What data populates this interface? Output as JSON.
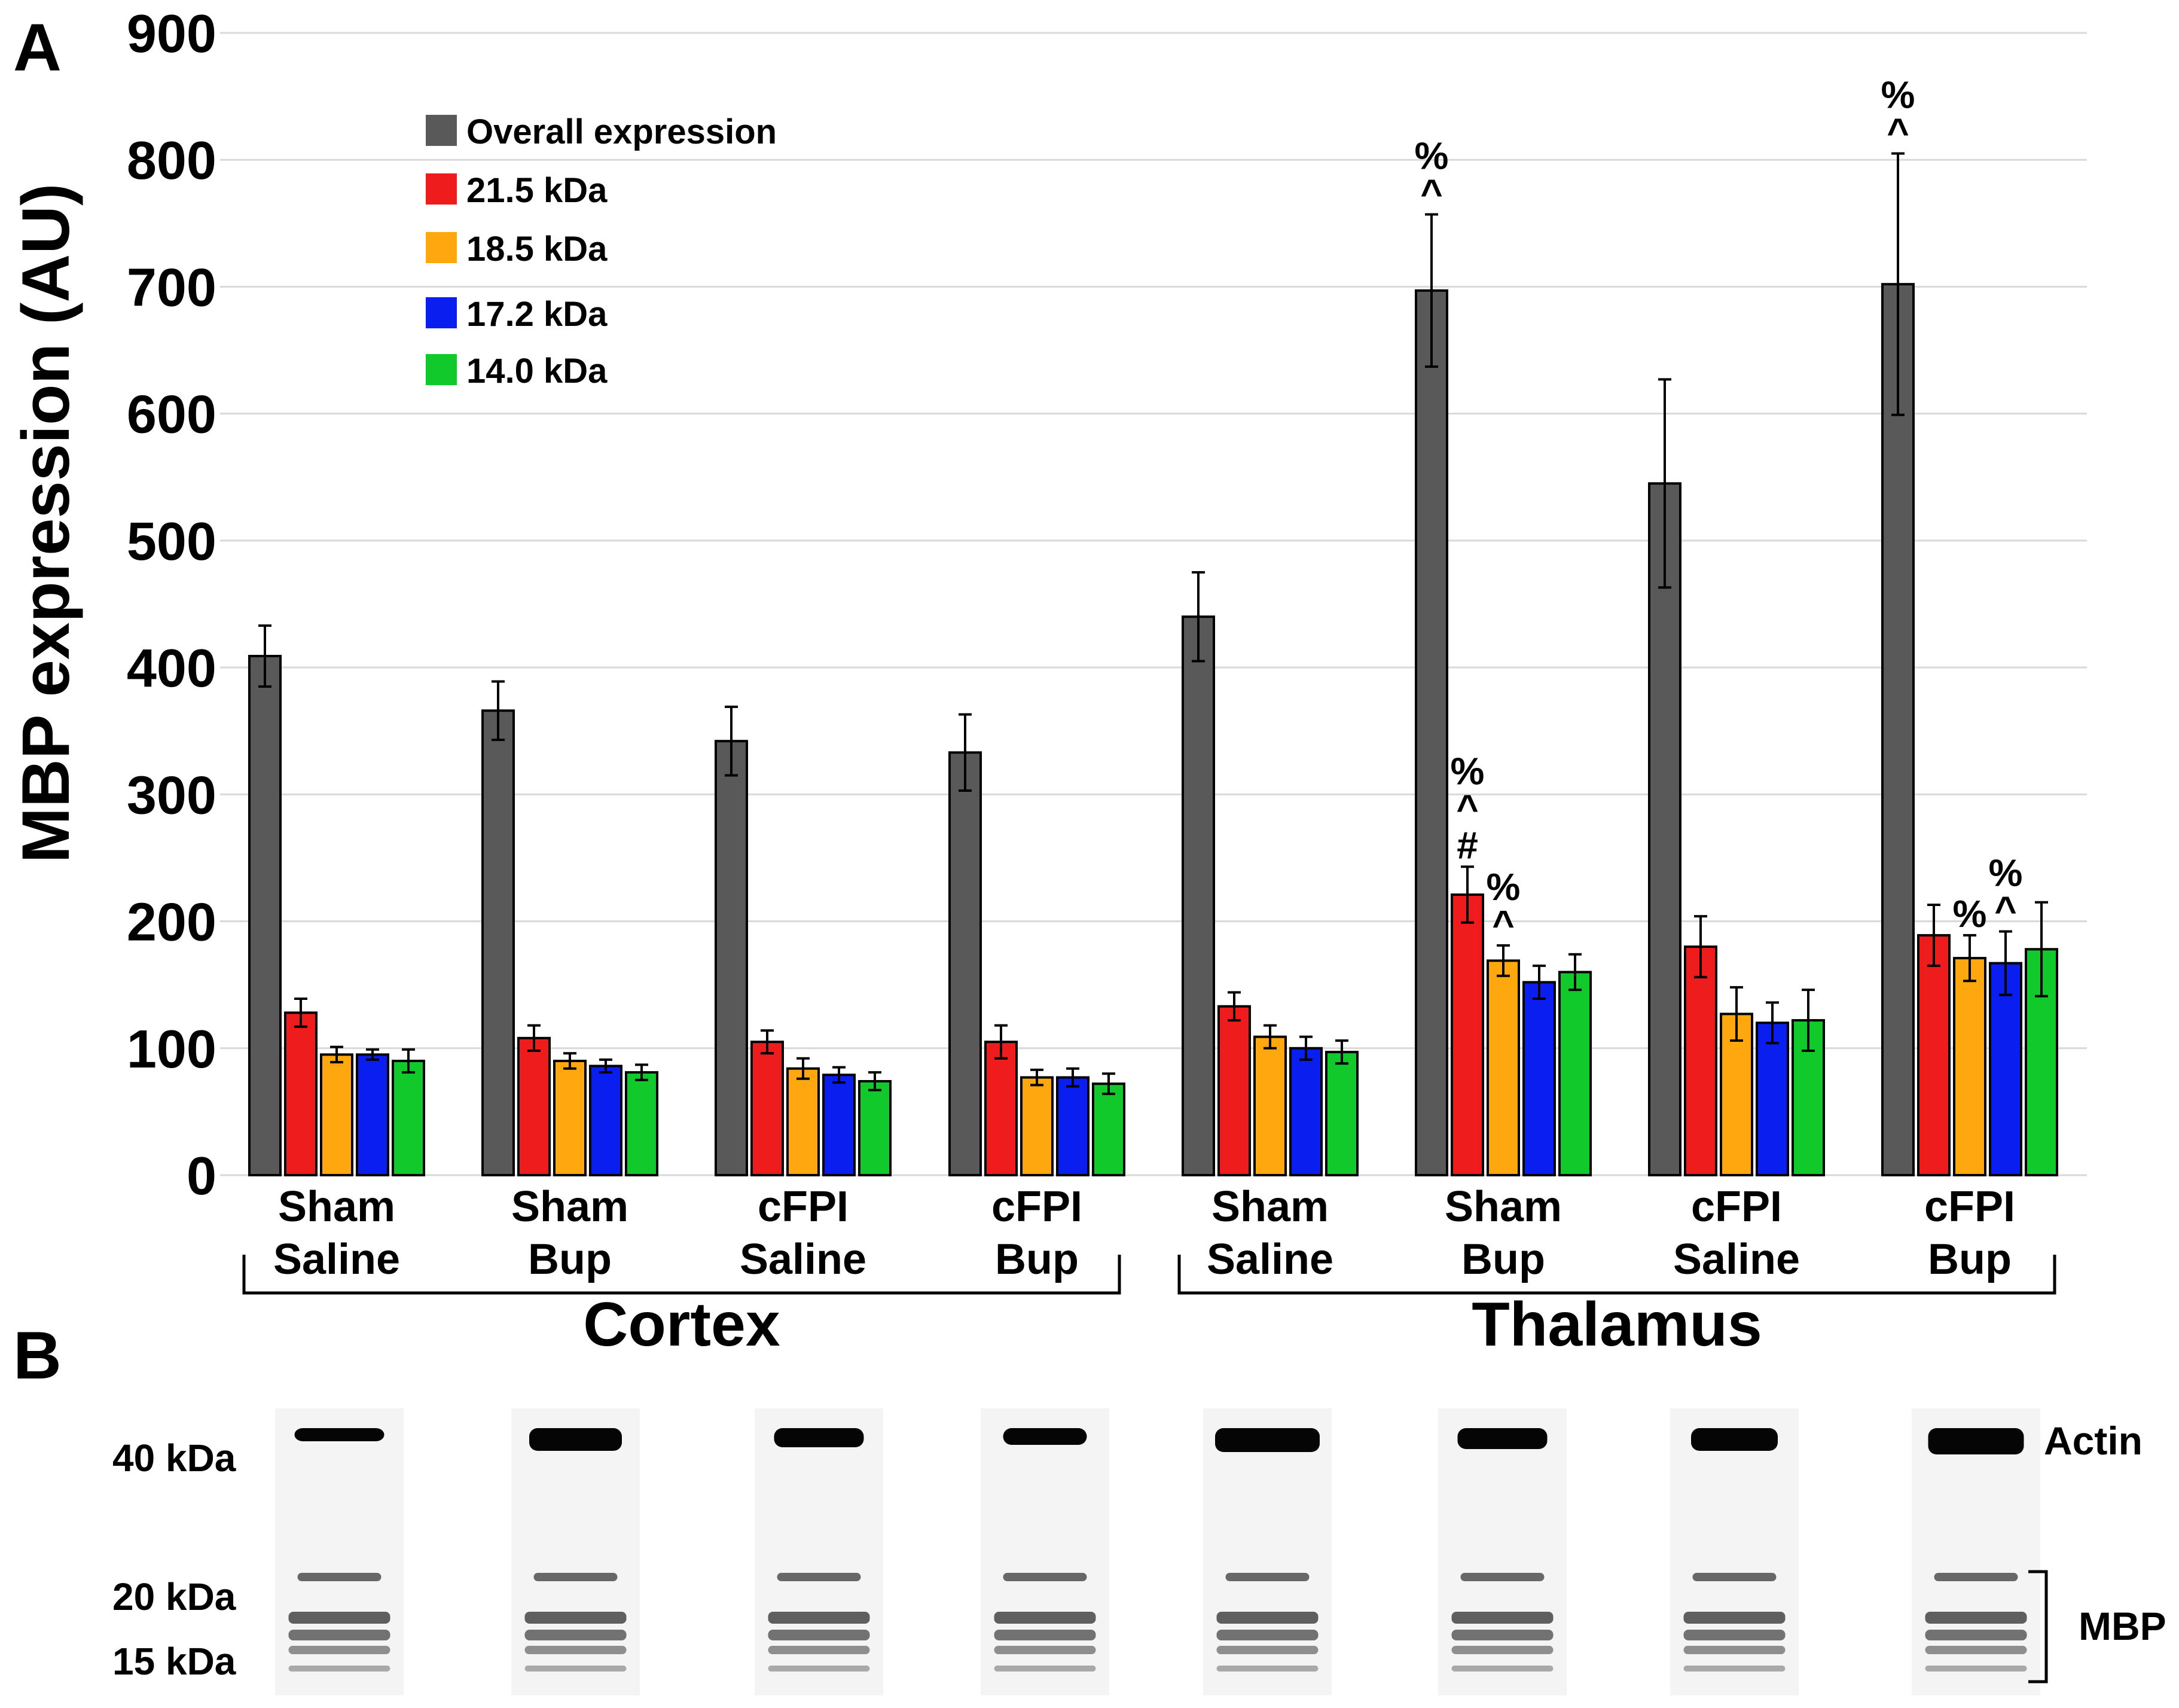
{
  "panel_labels": {
    "a": "A",
    "b": "B"
  },
  "chart_data": {
    "type": "bar",
    "title": "",
    "xlabel": "",
    "ylabel": "MBP expression (AU)",
    "ylim": [
      0,
      900
    ],
    "yticks": [
      0,
      100,
      200,
      300,
      400,
      500,
      600,
      700,
      800,
      900
    ],
    "grid": true,
    "legend_position": "top-left",
    "categories": [
      [
        "Sham",
        "Saline"
      ],
      [
        "Sham",
        "Bup"
      ],
      [
        "cFPI",
        "Saline"
      ],
      [
        "cFPI",
        "Bup"
      ],
      [
        "Sham",
        "Saline"
      ],
      [
        "Sham",
        "Bup"
      ],
      [
        "cFPI",
        "Saline"
      ],
      [
        "cFPI",
        "Bup"
      ]
    ],
    "regions": [
      {
        "name": "Cortex",
        "categories": [
          0,
          1,
          2,
          3
        ]
      },
      {
        "name": "Thalamus",
        "categories": [
          4,
          5,
          6,
          7
        ]
      }
    ],
    "series": [
      {
        "name": "Overall expression",
        "color": "#595959",
        "values": [
          409,
          366,
          342,
          333,
          440,
          697,
          545,
          702
        ],
        "errors": [
          24,
          23,
          27,
          30,
          35,
          60,
          82,
          103
        ]
      },
      {
        "name": "21.5 kDa",
        "color": "#ee1c1c",
        "values": [
          128,
          108,
          105,
          105,
          133,
          221,
          180,
          189
        ],
        "errors": [
          11,
          10,
          9,
          13,
          11,
          22,
          24,
          24
        ]
      },
      {
        "name": "18.5 kDa",
        "color": "#ffa70f",
        "values": [
          95,
          90,
          84,
          77,
          109,
          169,
          127,
          171
        ],
        "errors": [
          6,
          6,
          8,
          6,
          9,
          12,
          21,
          18
        ]
      },
      {
        "name": "17.2 kDa",
        "color": "#0a1ef0",
        "values": [
          95,
          86,
          79,
          77,
          100,
          152,
          120,
          167
        ],
        "errors": [
          4,
          5,
          6,
          7,
          9,
          13,
          16,
          25
        ]
      },
      {
        "name": "14.0 kDa",
        "color": "#12c92c",
        "values": [
          90,
          81,
          74,
          72,
          97,
          160,
          122,
          178
        ],
        "errors": [
          9,
          6,
          7,
          8,
          9,
          14,
          24,
          37
        ]
      }
    ],
    "annotations": [
      {
        "category": 5,
        "series": 0,
        "text": [
          "%",
          "^"
        ]
      },
      {
        "category": 7,
        "series": 0,
        "text": [
          "%",
          "^"
        ]
      },
      {
        "category": 5,
        "series": 1,
        "text": [
          "%",
          "^",
          "#"
        ]
      },
      {
        "category": 5,
        "series": 2,
        "text": [
          "%",
          "^"
        ]
      },
      {
        "category": 7,
        "series": 2,
        "text": [
          "%"
        ]
      },
      {
        "category": 7,
        "series": 3,
        "text": [
          "%",
          "^"
        ]
      }
    ]
  },
  "blot": {
    "markers": [
      "40 kDa",
      "20 kDa",
      "15 kDa"
    ],
    "labels": {
      "actin": "Actin",
      "mbp": "MBP"
    },
    "lanes": 8
  }
}
